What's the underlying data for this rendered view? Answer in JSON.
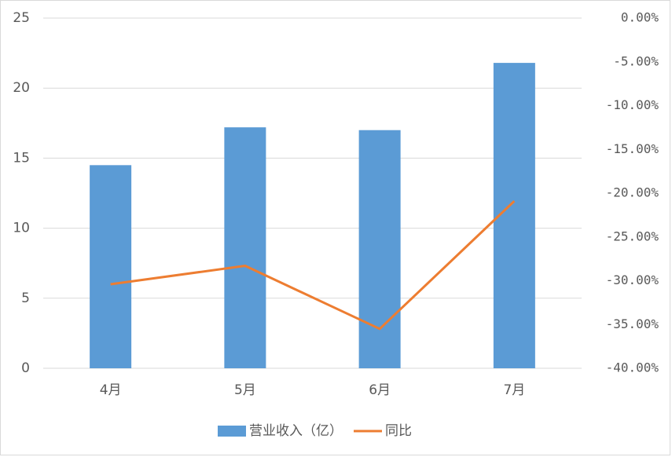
{
  "chart_data": {
    "type": "bar_line",
    "categories": [
      "4月",
      "5月",
      "6月",
      "7月"
    ],
    "series": [
      {
        "name": "营业收入（亿）",
        "color": "#5b9bd5",
        "type": "bar",
        "values": [
          14.5,
          17.2,
          17.0,
          21.8
        ]
      },
      {
        "name": "同比",
        "color": "#ed7d31",
        "type": "line",
        "axis": "y2",
        "values": [
          -30.4,
          -28.3,
          -35.5,
          -20.9
        ]
      }
    ],
    "ylim": [
      0,
      25
    ],
    "yticks": [
      0,
      5,
      10,
      15,
      20,
      25
    ],
    "y2lim": [
      -40,
      0
    ],
    "y2ticks": [
      {
        "value": -40,
        "label": "-40.00%"
      },
      {
        "value": -35,
        "label": "-35.00%"
      },
      {
        "value": -30,
        "label": "-30.00%"
      },
      {
        "value": -25,
        "label": "-25.00%"
      },
      {
        "value": -20,
        "label": "-20.00%"
      },
      {
        "value": -15,
        "label": "-15.00%"
      },
      {
        "value": -10,
        "label": "-10.00%"
      },
      {
        "value": -5,
        "label": "-5.00%"
      },
      {
        "value": 0,
        "label": "0.00%"
      }
    ],
    "grid": true,
    "legend": "bottom"
  }
}
